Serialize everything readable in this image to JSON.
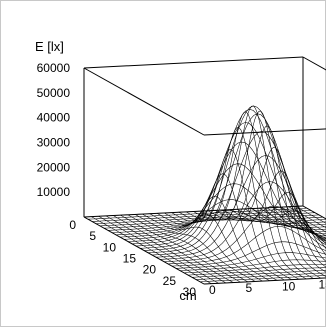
{
  "chart_data": {
    "type": "surface",
    "zlabel": "E [lx]",
    "xlabel": "cm",
    "ylabel": "cm",
    "z_ticks": [
      "10000",
      "20000",
      "30000",
      "40000",
      "50000",
      "60000"
    ],
    "x_ticks": [
      "0",
      "5",
      "10",
      "15",
      "20",
      "25",
      "30"
    ],
    "y_ticks": [
      "0",
      "5",
      "10",
      "15",
      "20",
      "25",
      "30"
    ],
    "xlim": [
      0,
      30
    ],
    "ylim": [
      0,
      30
    ],
    "zlim": [
      0,
      60000
    ],
    "surface": {
      "model": "gaussian",
      "peak": 56000,
      "center_x": 15,
      "center_y": 15,
      "sigma": 3.5,
      "grid_step": 1
    },
    "colors": {
      "line": "#000000",
      "background": "#ffffff",
      "frame_border": "#c8c8c8"
    }
  }
}
